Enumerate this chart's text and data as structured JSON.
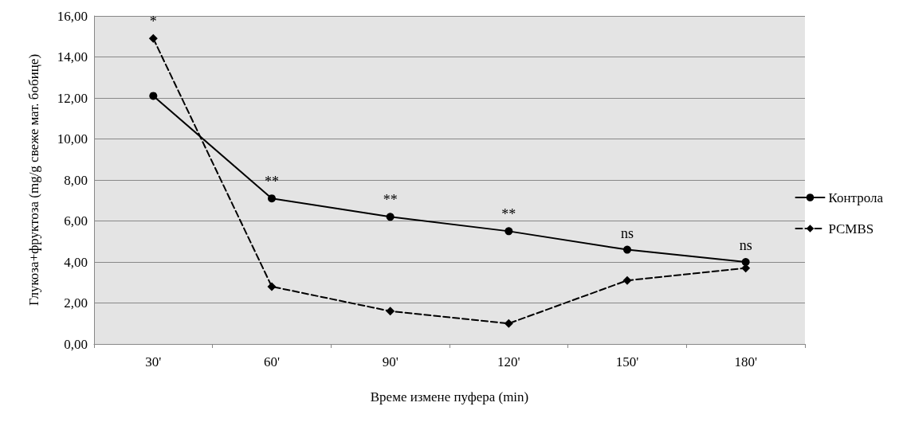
{
  "chart_data": {
    "type": "line",
    "xlabel": "Време измене пуфера (min)",
    "ylabel": "Глукоза+фруктоза (mg/g свеже мат. бобице)",
    "categories": [
      "30'",
      "60'",
      "90'",
      "120'",
      "150'",
      "180'"
    ],
    "series": [
      {
        "name": "Контрола",
        "color": "#000000",
        "marker": "circle",
        "line_style": "solid",
        "values": [
          12.1,
          7.1,
          6.2,
          5.5,
          4.6,
          4.0
        ]
      },
      {
        "name": "PCMBS",
        "color": "#000000",
        "marker": "diamond",
        "line_style": "dashed",
        "values": [
          14.9,
          2.8,
          1.6,
          1.0,
          3.1,
          3.7
        ]
      }
    ],
    "ylim": [
      0,
      16
    ],
    "yticks": [
      {
        "value": 0,
        "label": "0,00"
      },
      {
        "value": 2,
        "label": "2,00"
      },
      {
        "value": 4,
        "label": "4,00"
      },
      {
        "value": 6,
        "label": "6,00"
      },
      {
        "value": 8,
        "label": "8,00"
      },
      {
        "value": 10,
        "label": "10,00"
      },
      {
        "value": 12,
        "label": "12,00"
      },
      {
        "value": 14,
        "label": "14,00"
      },
      {
        "value": 16,
        "label": "16,00"
      }
    ],
    "annotations": [
      "*",
      "**",
      "**",
      "**",
      "ns",
      "ns"
    ],
    "grid": "y",
    "legend": "right"
  }
}
